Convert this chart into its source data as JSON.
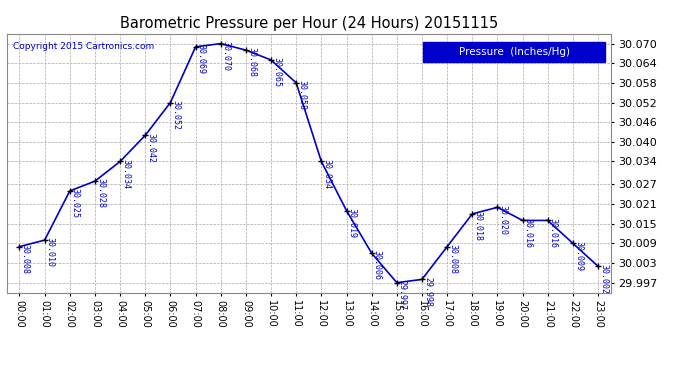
{
  "title": "Barometric Pressure per Hour (24 Hours) 20151115",
  "copyright": "Copyright 2015 Cartronics.com",
  "legend_label": "Pressure  (Inches/Hg)",
  "hours": [
    0,
    1,
    2,
    3,
    4,
    5,
    6,
    7,
    8,
    9,
    10,
    11,
    12,
    13,
    14,
    15,
    16,
    17,
    18,
    19,
    20,
    21,
    22,
    23
  ],
  "labels": [
    "00:00",
    "01:00",
    "02:00",
    "03:00",
    "04:00",
    "05:00",
    "06:00",
    "07:00",
    "08:00",
    "09:00",
    "10:00",
    "11:00",
    "12:00",
    "13:00",
    "14:00",
    "15:00",
    "16:00",
    "17:00",
    "18:00",
    "19:00",
    "20:00",
    "21:00",
    "22:00",
    "23:00"
  ],
  "values": [
    30.008,
    30.01,
    30.025,
    30.028,
    30.034,
    30.042,
    30.052,
    30.069,
    30.07,
    30.068,
    30.065,
    30.058,
    30.034,
    30.019,
    30.006,
    29.997,
    29.998,
    30.008,
    30.018,
    30.02,
    30.016,
    30.016,
    30.009,
    30.002
  ],
  "ylim_min": 29.994,
  "ylim_max": 30.073,
  "yticks": [
    29.997,
    30.003,
    30.009,
    30.015,
    30.021,
    30.027,
    30.034,
    30.04,
    30.046,
    30.052,
    30.058,
    30.064,
    30.07
  ],
  "line_color": "#0000cc",
  "marker_color": "#000000",
  "bg_color": "#ffffff",
  "grid_color": "#aaaaaa",
  "title_color": "#000000",
  "label_color": "#0000cc",
  "copyright_color": "#0000cc",
  "legend_bg": "#0000cc",
  "legend_text_color": "#ffffff"
}
